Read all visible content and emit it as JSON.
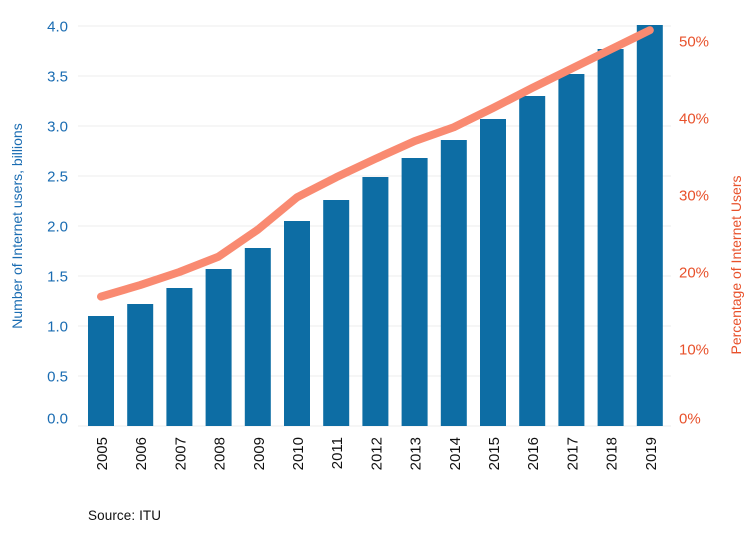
{
  "chart_data": {
    "type": "bar",
    "subtype": "bar+line dual axis",
    "title": "",
    "categories": [
      "2005",
      "2006",
      "2007",
      "2008",
      "2009",
      "2010",
      "2011",
      "2012",
      "2013",
      "2014",
      "2015",
      "2016",
      "2017",
      "2018",
      "2019"
    ],
    "series": [
      {
        "name": "Number of Internet users, billions",
        "type": "bar",
        "axis": "left",
        "color": "#0D6DA4",
        "values": [
          1.1,
          1.22,
          1.38,
          1.57,
          1.78,
          2.05,
          2.26,
          2.49,
          2.68,
          2.86,
          3.07,
          3.3,
          3.52,
          3.77,
          4.01
        ]
      },
      {
        "name": "Percentage of Internet Users",
        "type": "line",
        "axis": "right",
        "color": "#F98A71",
        "values": [
          16.8,
          18.3,
          20.0,
          22.0,
          25.5,
          29.7,
          32.3,
          34.7,
          37.0,
          38.8,
          41.3,
          43.9,
          46.4,
          48.9,
          51.4
        ]
      }
    ],
    "left_axis": {
      "label": "Number of Internet users, billions",
      "min": 0.0,
      "max": 4.0,
      "step": 0.5,
      "tick_labels": [
        "0.0",
        "0.5",
        "1.0",
        "1.5",
        "2.0",
        "2.5",
        "3.0",
        "3.5",
        "4.0"
      ],
      "color": "#1A6CB2"
    },
    "right_axis": {
      "label": "Percentage of Internet Users",
      "min": 0,
      "max": 50,
      "step": 10,
      "tick_labels": [
        "0%",
        "10%",
        "20%",
        "30%",
        "40%",
        "50%"
      ],
      "color": "#E8512B"
    },
    "x_axis": {
      "tick_rotation_deg": -90,
      "tick_color": "#111111"
    },
    "grid": "horizontal",
    "gridline_color": "#ECECEC",
    "legend": "none",
    "source": "Source: ITU"
  }
}
